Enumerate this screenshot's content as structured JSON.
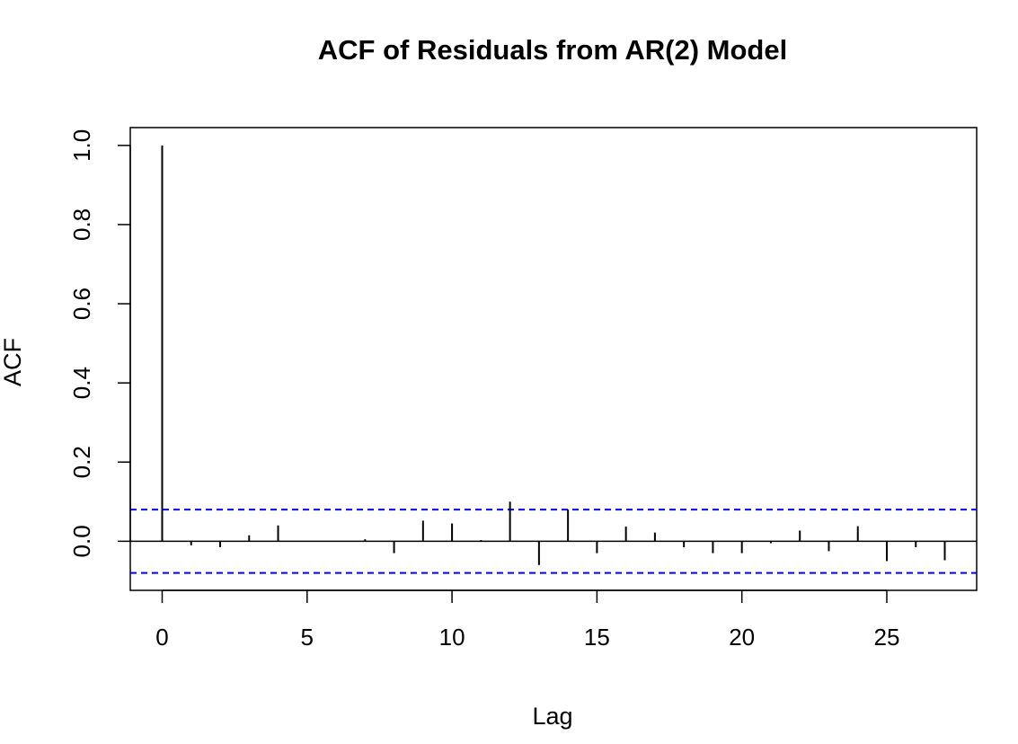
{
  "chart_data": {
    "type": "bar",
    "title": "ACF of Residuals from AR(2) Model",
    "xlabel": "Lag",
    "ylabel": "ACF",
    "xlim": [
      -1.1,
      28.1
    ],
    "ylim": [
      -0.124,
      1.045
    ],
    "x_ticks": [
      0,
      5,
      10,
      15,
      20,
      25
    ],
    "y_ticks": [
      0.0,
      0.2,
      0.4,
      0.6,
      0.8,
      1.0
    ],
    "x_tick_labels": [
      "0",
      "5",
      "10",
      "15",
      "20",
      "25"
    ],
    "y_tick_labels": [
      "0.0",
      "0.2",
      "0.4",
      "0.6",
      "0.8",
      "1.0"
    ],
    "lags": [
      0,
      1,
      2,
      3,
      4,
      5,
      6,
      7,
      8,
      9,
      10,
      11,
      12,
      13,
      14,
      15,
      16,
      17,
      18,
      19,
      20,
      21,
      22,
      23,
      24,
      25,
      26,
      27
    ],
    "values": [
      1.0,
      -0.01,
      -0.015,
      0.015,
      0.04,
      0.0,
      0.0,
      0.005,
      -0.03,
      0.052,
      0.045,
      0.003,
      0.1,
      -0.06,
      0.08,
      -0.03,
      0.037,
      0.022,
      -0.015,
      -0.03,
      -0.03,
      -0.005,
      0.027,
      -0.025,
      0.038,
      -0.05,
      -0.015,
      -0.048
    ],
    "confidence_bound": 0.08,
    "bar_color": "#000000",
    "bound_color": "#0000ff",
    "grid": false
  }
}
